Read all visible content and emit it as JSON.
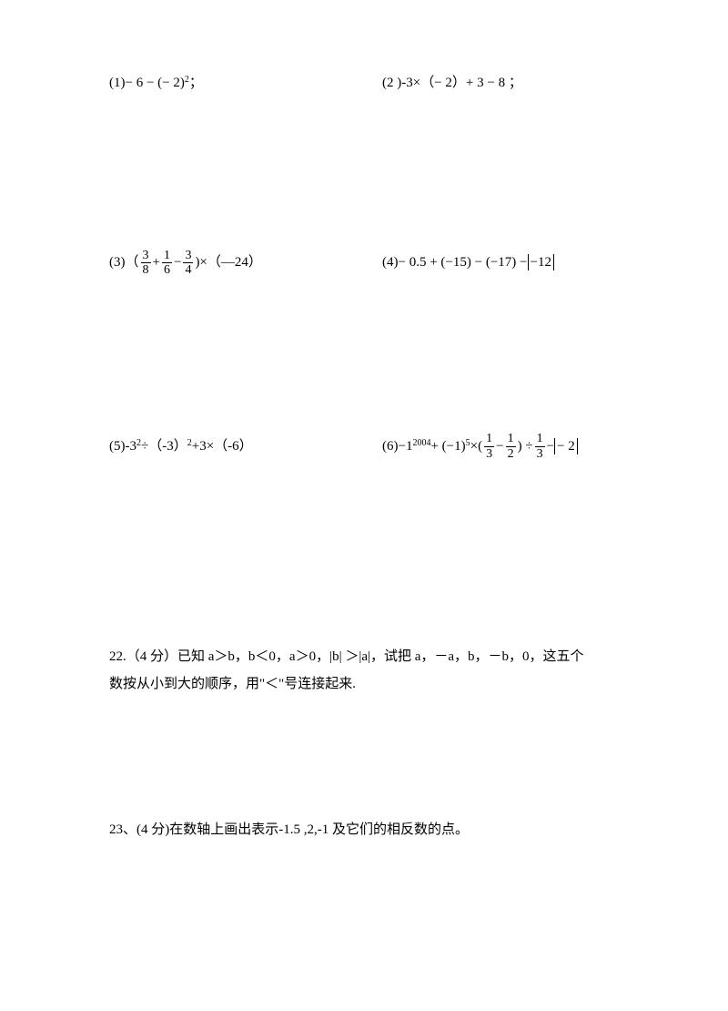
{
  "problems": {
    "p1": {
      "label": "(1)",
      "expr": "− 6 − (− 2)",
      "sup": "2",
      "tail": "   ；"
    },
    "p2": {
      "label": "(2 )",
      "expr": "-3×（− 2）+ 3 − 8  ；"
    },
    "p3": {
      "label": "(3)（",
      "frac1_num": "3",
      "frac1_den": "8",
      "plus": " + ",
      "frac2_num": "1",
      "frac2_den": "6",
      "minus": " − ",
      "frac3_num": "3",
      "frac3_den": "4",
      "tail": ")×（—24）"
    },
    "p4": {
      "label": "(4)",
      "expr_pre": " − 0.5 + (−15) − (−17) − ",
      "abs": "−12"
    },
    "p5": {
      "label": "(5)",
      "expr_a": "-3",
      "sup_a": "2",
      "expr_b": "÷（-3）",
      "sup_b": "2",
      "expr_c": "+3×（-6）"
    },
    "p6": {
      "label": "(6)",
      "pre": " −1",
      "sup1": "2004",
      "mid1": " + (−1)",
      "sup2": "5",
      "mid2": " ×(",
      "f1_num": "1",
      "f1_den": "3",
      "minus": " − ",
      "f2_num": "1",
      "f2_den": "2",
      "mid3": ") ÷ ",
      "f3_num": "1",
      "f3_den": "3",
      "mid4": " − ",
      "abs": "− 2"
    }
  },
  "q22": {
    "line1": "22.（4 分）已知 a＞b，b＜0，a＞0，|b| ＞|a|，试把 a，－a，b，－b，0，这五个",
    "line2": "数按从小到大的顺序，用\"＜\"号连接起来."
  },
  "q23": {
    "line1": "23、(4 分)在数轴上画出表示-1.5 ,2,-1 及它们的相反数的点。"
  },
  "colors": {
    "text": "#000000",
    "background": "#ffffff"
  },
  "fonts": {
    "body_size": 15,
    "sup_size": 10,
    "fraction_size": 14
  }
}
